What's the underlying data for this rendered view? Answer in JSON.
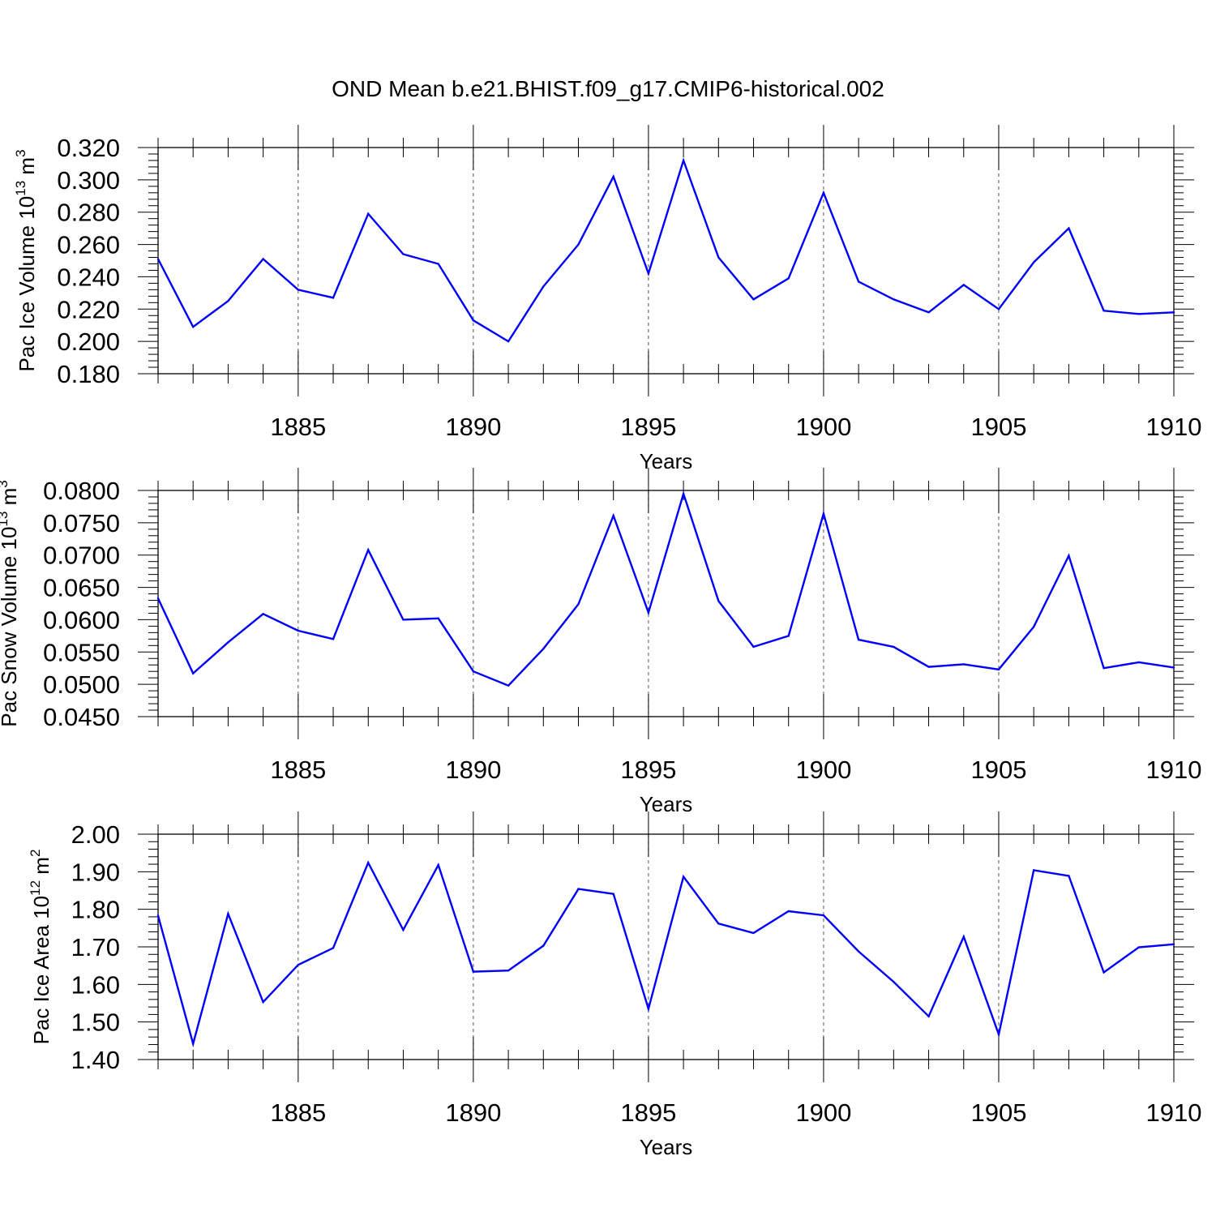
{
  "title": "OND Mean b.e21.BHIST.f09_g17.CMIP6-historical.002",
  "series_color": "#0000ff",
  "grid_color": "#555555",
  "chart_data": [
    {
      "type": "line",
      "ylabel": {
        "base": "Pac Ice Volume 10",
        "exp1": "13",
        "mid": " m",
        "exp2": "3"
      },
      "xlabel": "Years",
      "xlim": [
        1881,
        1910
      ],
      "ylim": [
        0.18,
        0.32
      ],
      "xticks": [
        1885,
        1890,
        1895,
        1900,
        1905,
        1910
      ],
      "yticks": [
        0.18,
        0.2,
        0.22,
        0.24,
        0.26,
        0.28,
        0.3,
        0.32
      ],
      "yticklabels": [
        "0.180",
        "0.200",
        "0.220",
        "0.240",
        "0.260",
        "0.280",
        "0.300",
        "0.320"
      ],
      "x": [
        1881,
        1882,
        1883,
        1884,
        1885,
        1886,
        1887,
        1888,
        1889,
        1890,
        1891,
        1892,
        1893,
        1894,
        1895,
        1896,
        1897,
        1898,
        1899,
        1900,
        1901,
        1902,
        1903,
        1904,
        1905,
        1906,
        1907,
        1908,
        1909,
        1910
      ],
      "values": [
        0.251,
        0.209,
        0.225,
        0.251,
        0.232,
        0.227,
        0.279,
        0.254,
        0.248,
        0.213,
        0.2,
        0.234,
        0.26,
        0.302,
        0.242,
        0.312,
        0.252,
        0.226,
        0.239,
        0.292,
        0.237,
        0.226,
        0.218,
        0.235,
        0.22,
        0.249,
        0.27,
        0.219,
        0.217,
        0.218
      ]
    },
    {
      "type": "line",
      "ylabel": {
        "base": "Pac Snow Volume 10",
        "exp1": "13",
        "mid": " m",
        "exp2": "3"
      },
      "xlabel": "Years",
      "xlim": [
        1881,
        1910
      ],
      "ylim": [
        0.045,
        0.08
      ],
      "xticks": [
        1885,
        1890,
        1895,
        1900,
        1905,
        1910
      ],
      "yticks": [
        0.045,
        0.05,
        0.055,
        0.06,
        0.065,
        0.07,
        0.075,
        0.08
      ],
      "yticklabels": [
        "0.0450",
        "0.0500",
        "0.0550",
        "0.0600",
        "0.0650",
        "0.0700",
        "0.0750",
        "0.0800"
      ],
      "x": [
        1881,
        1882,
        1883,
        1884,
        1885,
        1886,
        1887,
        1888,
        1889,
        1890,
        1891,
        1892,
        1893,
        1894,
        1895,
        1896,
        1897,
        1898,
        1899,
        1900,
        1901,
        1902,
        1903,
        1904,
        1905,
        1906,
        1907,
        1908,
        1909,
        1910
      ],
      "values": [
        0.0633,
        0.0517,
        0.0565,
        0.0609,
        0.0583,
        0.057,
        0.0708,
        0.06,
        0.0602,
        0.052,
        0.0498,
        0.0555,
        0.0624,
        0.0761,
        0.0611,
        0.0795,
        0.0629,
        0.0558,
        0.0575,
        0.0764,
        0.0569,
        0.0558,
        0.0527,
        0.0531,
        0.0523,
        0.0589,
        0.0699,
        0.0525,
        0.0534,
        0.0526
      ]
    },
    {
      "type": "line",
      "ylabel": {
        "base": "Pac Ice Area 10",
        "exp1": "12",
        "mid": " m",
        "exp2": "2"
      },
      "xlabel": "Years",
      "xlim": [
        1881,
        1910
      ],
      "ylim": [
        1.4,
        2.0
      ],
      "xticks": [
        1885,
        1890,
        1895,
        1900,
        1905,
        1910
      ],
      "yticks": [
        1.4,
        1.5,
        1.6,
        1.7,
        1.8,
        1.9,
        2.0
      ],
      "yticklabels": [
        "1.40",
        "1.50",
        "1.60",
        "1.70",
        "1.80",
        "1.90",
        "2.00"
      ],
      "x": [
        1881,
        1882,
        1883,
        1884,
        1885,
        1886,
        1887,
        1888,
        1889,
        1890,
        1891,
        1892,
        1893,
        1894,
        1895,
        1896,
        1897,
        1898,
        1899,
        1900,
        1901,
        1902,
        1903,
        1904,
        1905,
        1906,
        1907,
        1908,
        1909,
        1910
      ],
      "values": [
        1.783,
        1.442,
        1.788,
        1.553,
        1.652,
        1.697,
        1.924,
        1.745,
        1.918,
        1.634,
        1.637,
        1.703,
        1.854,
        1.841,
        1.535,
        1.887,
        1.762,
        1.737,
        1.795,
        1.784,
        1.688,
        1.607,
        1.515,
        1.727,
        1.467,
        1.904,
        1.889,
        1.632,
        1.699,
        1.707
      ]
    }
  ]
}
